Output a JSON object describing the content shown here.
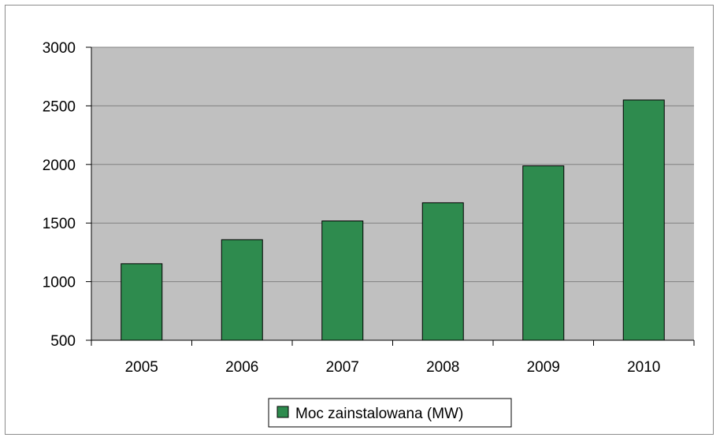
{
  "chart_data": {
    "type": "bar",
    "categories": [
      "2005",
      "2006",
      "2007",
      "2008",
      "2009",
      "2010"
    ],
    "series": [
      {
        "name": "Moc zainstalowana (MW)",
        "values": [
          1153,
          1358,
          1518,
          1673,
          1988,
          2550
        ]
      }
    ],
    "title": "",
    "xlabel": "",
    "ylabel": "",
    "ylim": [
      500,
      3000
    ],
    "yticks": [
      "500",
      "1000",
      "1500",
      "2000",
      "2500",
      "3000"
    ],
    "grid": true,
    "legend": "bottom-center",
    "colors": {
      "bar": "#2e8b4e",
      "plot_background": "#c0c0c0",
      "gridline": "#808080"
    }
  }
}
